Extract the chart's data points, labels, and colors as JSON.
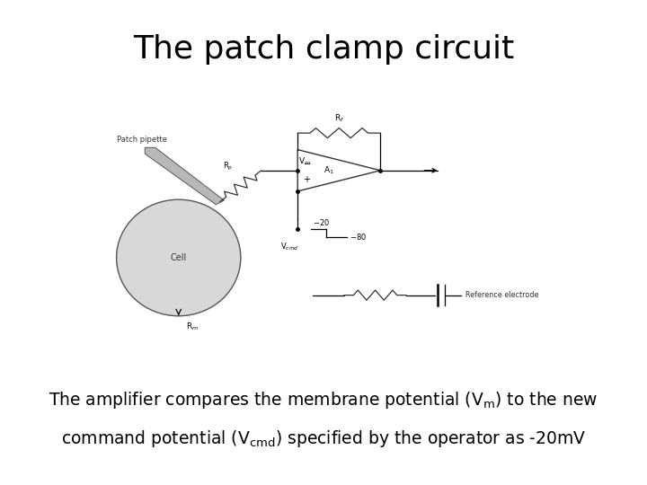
{
  "title": "The patch clamp circuit",
  "title_fontsize": 26,
  "background_color": "#ffffff",
  "text_color": "#000000",
  "body_fontsize": 13.5,
  "circuit_region": [
    0.1,
    0.22,
    0.8,
    0.6
  ]
}
